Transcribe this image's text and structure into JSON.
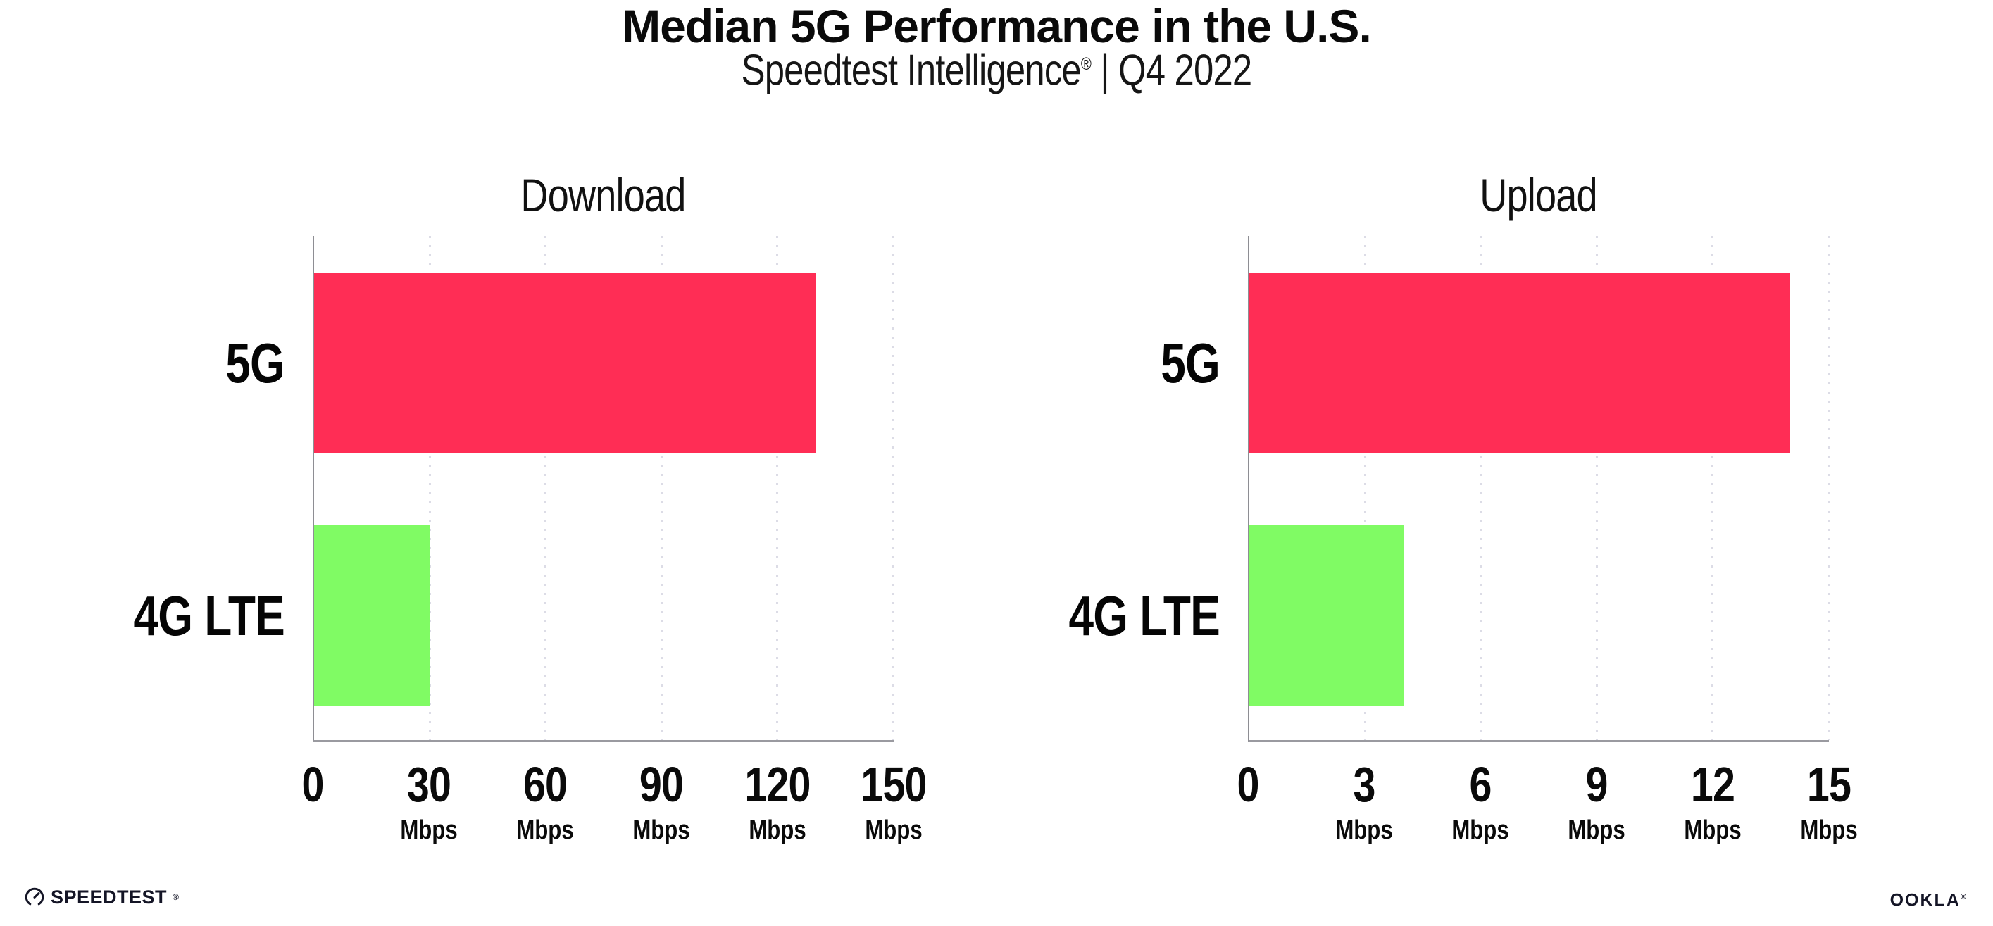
{
  "header": {
    "title": "Median 5G Performance in the U.S.",
    "subtitle": {
      "brand": "Speedtest Intelligence",
      "reg": "®",
      "rest": " | Q4 2022"
    }
  },
  "chart_data": [
    {
      "type": "bar",
      "orientation": "horizontal",
      "title": "Download",
      "categories": [
        "5G",
        "4G LTE"
      ],
      "values": [
        130,
        30
      ],
      "unit": "Mbps",
      "xlim": [
        0,
        150
      ],
      "xticks": [
        0,
        30,
        60,
        90,
        120,
        150
      ],
      "bar_colors": [
        "#FF2D55",
        "#80FB64"
      ],
      "grid": "vertical-dotted",
      "legend": "none"
    },
    {
      "type": "bar",
      "orientation": "horizontal",
      "title": "Upload",
      "categories": [
        "5G",
        "4G LTE"
      ],
      "values": [
        14,
        4
      ],
      "unit": "Mbps",
      "xlim": [
        0,
        15
      ],
      "xticks": [
        0,
        3,
        6,
        9,
        12,
        15
      ],
      "bar_colors": [
        "#FF2D55",
        "#80FB64"
      ],
      "grid": "vertical-dotted",
      "legend": "none"
    }
  ],
  "colors": {
    "bar_5g": "#FF2D55",
    "bar_4g_lte": "#80FB64",
    "gridline": "#DCDCE6",
    "axis": "#94949A",
    "logo": "#141526"
  },
  "footer": {
    "speedtest": "SPEEDTEST",
    "speedtest_mark": "®",
    "ookla": "OOKLA",
    "ookla_mark": "®"
  }
}
